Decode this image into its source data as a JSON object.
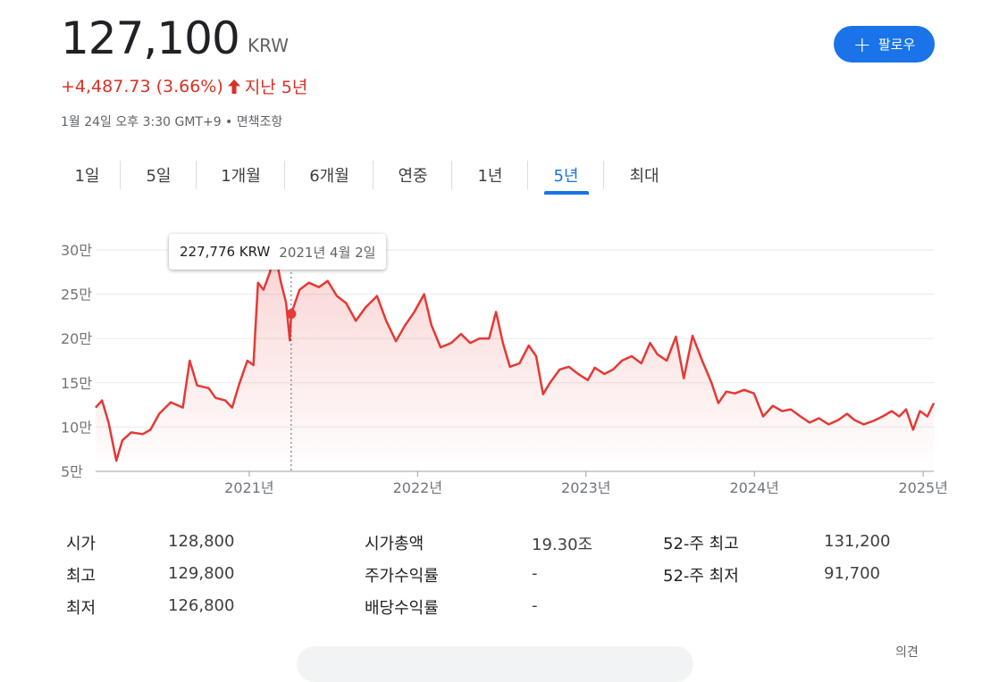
{
  "quote": {
    "price": "127,100",
    "currency": "KRW",
    "change": "+4,487.73 (3.66%)",
    "period": "지난 5년",
    "timestamp": "1월 24일 오후 3:30 GMT+9 • 면책조항"
  },
  "follow_button": {
    "label": "팔로우"
  },
  "tabs": [
    {
      "label": "1일",
      "active": false
    },
    {
      "label": "5일",
      "active": false
    },
    {
      "label": "1개월",
      "active": false
    },
    {
      "label": "6개월",
      "active": false
    },
    {
      "label": "연중",
      "active": false
    },
    {
      "label": "1년",
      "active": false
    },
    {
      "label": "5년",
      "active": true
    },
    {
      "label": "최대",
      "active": false
    }
  ],
  "tooltip": {
    "value": "227,776 KRW",
    "date": "2021년 4월 2일"
  },
  "colors": {
    "line": "#e53935",
    "accent": "#1a73e8",
    "negative": "#d93025"
  },
  "chart_data": {
    "type": "area",
    "title": "",
    "xlabel": "",
    "ylabel": "",
    "x_ticks": [
      "2021년",
      "2022년",
      "2023년",
      "2024년",
      "2025년"
    ],
    "y_ticks": [
      "5만",
      "10만",
      "15만",
      "20만",
      "25만",
      "30만"
    ],
    "ylim": [
      50000,
      300000
    ],
    "grid": true,
    "highlight": {
      "x": "2021-04-02",
      "y": 227776
    },
    "series": [
      {
        "values": [
          [
            "2020-02-03",
            122000
          ],
          [
            "2020-02-17",
            130000
          ],
          [
            "2020-03-02",
            105000
          ],
          [
            "2020-03-19",
            62000
          ],
          [
            "2020-04-01",
            85000
          ],
          [
            "2020-04-20",
            94000
          ],
          [
            "2020-05-15",
            92000
          ],
          [
            "2020-06-01",
            97000
          ],
          [
            "2020-06-20",
            115000
          ],
          [
            "2020-07-15",
            128000
          ],
          [
            "2020-08-10",
            122000
          ],
          [
            "2020-08-25",
            175000
          ],
          [
            "2020-09-10",
            147000
          ],
          [
            "2020-10-05",
            144000
          ],
          [
            "2020-10-20",
            133000
          ],
          [
            "2020-11-10",
            130000
          ],
          [
            "2020-11-25",
            122000
          ],
          [
            "2020-12-10",
            148000
          ],
          [
            "2020-12-28",
            175000
          ],
          [
            "2021-01-10",
            170000
          ],
          [
            "2021-01-20",
            263000
          ],
          [
            "2021-02-01",
            255000
          ],
          [
            "2021-02-15",
            275000
          ],
          [
            "2021-02-25",
            300000
          ],
          [
            "2021-03-10",
            265000
          ],
          [
            "2021-03-22",
            240000
          ],
          [
            "2021-03-30",
            198000
          ],
          [
            "2021-04-02",
            227776
          ],
          [
            "2021-04-20",
            255000
          ],
          [
            "2021-05-10",
            263000
          ],
          [
            "2021-06-01",
            258000
          ],
          [
            "2021-06-20",
            265000
          ],
          [
            "2021-07-10",
            248000
          ],
          [
            "2021-07-30",
            240000
          ],
          [
            "2021-08-20",
            220000
          ],
          [
            "2021-09-10",
            235000
          ],
          [
            "2021-10-05",
            248000
          ],
          [
            "2021-10-25",
            220000
          ],
          [
            "2021-11-15",
            197000
          ],
          [
            "2021-12-05",
            215000
          ],
          [
            "2021-12-25",
            230000
          ],
          [
            "2022-01-15",
            250000
          ],
          [
            "2022-01-31",
            215000
          ],
          [
            "2022-02-20",
            190000
          ],
          [
            "2022-03-15",
            195000
          ],
          [
            "2022-04-05",
            205000
          ],
          [
            "2022-04-25",
            195000
          ],
          [
            "2022-05-15",
            200000
          ],
          [
            "2022-06-05",
            200000
          ],
          [
            "2022-06-20",
            230000
          ],
          [
            "2022-07-05",
            195000
          ],
          [
            "2022-07-20",
            168000
          ],
          [
            "2022-08-10",
            172000
          ],
          [
            "2022-08-30",
            192000
          ],
          [
            "2022-09-15",
            180000
          ],
          [
            "2022-09-30",
            137000
          ],
          [
            "2022-10-15",
            150000
          ],
          [
            "2022-11-05",
            165000
          ],
          [
            "2022-11-25",
            168000
          ],
          [
            "2022-12-15",
            160000
          ],
          [
            "2023-01-05",
            153000
          ],
          [
            "2023-01-20",
            167000
          ],
          [
            "2023-02-10",
            160000
          ],
          [
            "2023-03-01",
            165000
          ],
          [
            "2023-03-20",
            175000
          ],
          [
            "2023-04-10",
            180000
          ],
          [
            "2023-05-01",
            172000
          ],
          [
            "2023-05-20",
            195000
          ],
          [
            "2023-06-05",
            182000
          ],
          [
            "2023-06-25",
            175000
          ],
          [
            "2023-07-15",
            202000
          ],
          [
            "2023-08-01",
            155000
          ],
          [
            "2023-08-20",
            203000
          ],
          [
            "2023-09-10",
            175000
          ],
          [
            "2023-09-30",
            150000
          ],
          [
            "2023-10-15",
            127000
          ],
          [
            "2023-11-01",
            140000
          ],
          [
            "2023-11-20",
            138000
          ],
          [
            "2023-12-10",
            142000
          ],
          [
            "2023-12-31",
            138000
          ],
          [
            "2024-01-20",
            112000
          ],
          [
            "2024-02-10",
            124000
          ],
          [
            "2024-03-01",
            118000
          ],
          [
            "2024-03-20",
            120000
          ],
          [
            "2024-04-10",
            112000
          ],
          [
            "2024-04-30",
            105000
          ],
          [
            "2024-05-20",
            110000
          ],
          [
            "2024-06-10",
            103000
          ],
          [
            "2024-07-01",
            108000
          ],
          [
            "2024-07-20",
            115000
          ],
          [
            "2024-08-05",
            108000
          ],
          [
            "2024-08-25",
            103000
          ],
          [
            "2024-09-15",
            107000
          ],
          [
            "2024-10-05",
            112000
          ],
          [
            "2024-10-25",
            118000
          ],
          [
            "2024-11-10",
            112000
          ],
          [
            "2024-11-25",
            120000
          ],
          [
            "2024-12-10",
            97000
          ],
          [
            "2024-12-25",
            118000
          ],
          [
            "2025-01-10",
            112000
          ],
          [
            "2025-01-24",
            127100
          ]
        ]
      }
    ]
  },
  "stats": [
    {
      "label": "시가",
      "value": "128,800"
    },
    {
      "label": "최고",
      "value": "129,800"
    },
    {
      "label": "최저",
      "value": "126,800"
    },
    {
      "label": "시가총액",
      "value": "19.30조"
    },
    {
      "label": "주가수익률",
      "value": "-"
    },
    {
      "label": "배당수익률",
      "value": "-"
    },
    {
      "label": "52-주 최고",
      "value": "131,200"
    },
    {
      "label": "52-주 최저",
      "value": "91,700"
    }
  ],
  "feedback_label": "의견"
}
